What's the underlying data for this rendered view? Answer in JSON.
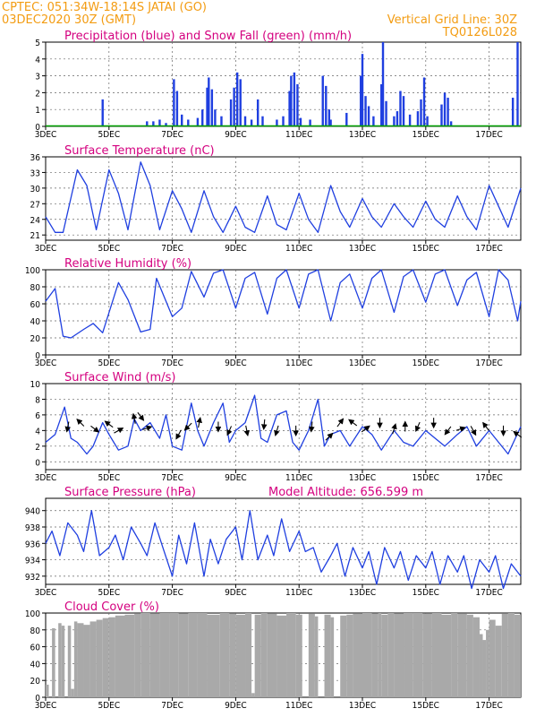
{
  "header": {
    "line1_left": "CPTEC:   051:34W-18:14S   JATAI (GO)",
    "line2_left": "03DEC2020  30Z  (GMT)",
    "line1_right": "Vertical Grid Line: 30Z",
    "line2_right": "TQ0126L028"
  },
  "colors": {
    "header": "#f39c12",
    "panel_title": "#d4007f",
    "series_line": "#1f3fe0",
    "precip_bars": "#1f3fe0",
    "snow_line": "#00a000",
    "cloud_fill": "#a9a9a9",
    "wind_arrows": "#000000"
  },
  "chart_data": [
    {
      "id": "precip",
      "type": "bar",
      "title": "Precipitation (blue) and Snow Fall (green) (mm/h)",
      "ylim": [
        0,
        5
      ],
      "yticks": [
        0,
        1,
        2,
        3,
        4,
        5
      ],
      "x_tick_labels": [
        "3DEC",
        "5DEC",
        "7DEC",
        "9DEC",
        "11DEC",
        "13DEC",
        "15DEC",
        "17DEC"
      ],
      "grid": "dashed",
      "series": [
        {
          "values": [
            [
              4.8,
              1.6
            ],
            [
              6.2,
              0.3
            ],
            [
              6.4,
              0.3
            ],
            [
              6.6,
              0.4
            ],
            [
              6.8,
              0.2
            ],
            [
              7.05,
              2.8
            ],
            [
              7.15,
              2.1
            ],
            [
              7.3,
              0.7
            ],
            [
              7.5,
              0.4
            ],
            [
              7.8,
              0.5
            ],
            [
              7.95,
              1.0
            ],
            [
              8.1,
              2.3
            ],
            [
              8.15,
              2.9
            ],
            [
              8.25,
              2.2
            ],
            [
              8.35,
              1.0
            ],
            [
              8.55,
              0.6
            ],
            [
              8.85,
              1.6
            ],
            [
              8.95,
              2.3
            ],
            [
              9.05,
              3.2
            ],
            [
              9.15,
              2.8
            ],
            [
              9.3,
              0.6
            ],
            [
              9.5,
              0.4
            ],
            [
              9.7,
              1.6
            ],
            [
              9.85,
              0.6
            ],
            [
              10.3,
              0.4
            ],
            [
              10.5,
              0.6
            ],
            [
              10.7,
              2.1
            ],
            [
              10.75,
              3.0
            ],
            [
              10.85,
              3.2
            ],
            [
              10.95,
              2.5
            ],
            [
              11.05,
              0.5
            ],
            [
              11.35,
              0.4
            ],
            [
              11.75,
              3.0
            ],
            [
              11.85,
              2.4
            ],
            [
              11.95,
              1.0
            ],
            [
              12.0,
              0.4
            ],
            [
              12.5,
              0.8
            ],
            [
              12.95,
              3.0
            ],
            [
              13.0,
              4.3
            ],
            [
              13.1,
              1.8
            ],
            [
              13.2,
              1.2
            ],
            [
              13.35,
              0.6
            ],
            [
              13.6,
              2.5
            ],
            [
              13.65,
              5.0
            ],
            [
              13.75,
              1.5
            ],
            [
              14.0,
              0.6
            ],
            [
              14.1,
              0.9
            ],
            [
              14.2,
              2.1
            ],
            [
              14.3,
              1.8
            ],
            [
              14.5,
              0.7
            ],
            [
              14.75,
              0.9
            ],
            [
              14.85,
              1.6
            ],
            [
              14.95,
              2.9
            ],
            [
              15.05,
              0.6
            ],
            [
              15.5,
              1.3
            ],
            [
              15.6,
              2.0
            ],
            [
              15.7,
              1.7
            ],
            [
              15.8,
              0.3
            ],
            [
              17.75,
              1.7
            ],
            [
              17.9,
              5.0
            ]
          ]
        }
      ]
    },
    {
      "id": "temperature",
      "type": "line",
      "title": "Surface Temperature (nC)",
      "ylim": [
        20,
        36
      ],
      "yticks": [
        21,
        24,
        27,
        30,
        33,
        36
      ],
      "x_tick_labels": [
        "3DEC",
        "5DEC",
        "7DEC",
        "9DEC",
        "11DEC",
        "13DEC",
        "15DEC",
        "17DEC"
      ],
      "series": [
        {
          "x": [
            3.0,
            3.3,
            3.55,
            4.0,
            4.3,
            4.6,
            5.0,
            5.3,
            5.6,
            6.0,
            6.3,
            6.6,
            7.0,
            7.3,
            7.6,
            8.0,
            8.3,
            8.6,
            9.0,
            9.3,
            9.6,
            10.0,
            10.3,
            10.6,
            11.0,
            11.3,
            11.6,
            12.0,
            12.3,
            12.6,
            13.0,
            13.3,
            13.6,
            14.0,
            14.3,
            14.6,
            15.0,
            15.3,
            15.6,
            16.0,
            16.3,
            16.6,
            17.0,
            17.3,
            17.6,
            18.0
          ],
          "y": [
            24.5,
            21.5,
            21.5,
            33.5,
            30.5,
            22.0,
            33.5,
            29.0,
            22.0,
            35.0,
            30.5,
            22.0,
            29.5,
            26.0,
            21.5,
            29.5,
            24.5,
            21.5,
            26.5,
            22.5,
            21.5,
            28.5,
            23.0,
            22.0,
            29.0,
            24.0,
            21.5,
            30.5,
            25.5,
            22.5,
            28.0,
            24.5,
            22.5,
            27.0,
            24.5,
            22.5,
            27.5,
            24.0,
            22.5,
            28.5,
            24.5,
            22.0,
            30.5,
            26.5,
            22.5,
            30.0
          ]
        }
      ]
    },
    {
      "id": "humidity",
      "type": "line",
      "title": "Relative Humidity (%)",
      "ylim": [
        0,
        100
      ],
      "yticks": [
        0,
        20,
        40,
        60,
        80,
        100
      ],
      "x_tick_labels": [
        "3DEC",
        "5DEC",
        "7DEC",
        "9DEC",
        "11DEC",
        "13DEC",
        "15DEC",
        "17DEC"
      ],
      "series": [
        {
          "x": [
            3.0,
            3.3,
            3.55,
            3.8,
            4.2,
            4.5,
            4.8,
            5.3,
            5.6,
            6.0,
            6.3,
            6.5,
            7.0,
            7.3,
            7.6,
            8.0,
            8.3,
            8.6,
            9.0,
            9.3,
            9.6,
            10.0,
            10.3,
            10.6,
            11.0,
            11.3,
            11.6,
            12.0,
            12.3,
            12.6,
            13.0,
            13.3,
            13.6,
            14.0,
            14.3,
            14.6,
            15.0,
            15.3,
            15.6,
            16.0,
            16.3,
            16.6,
            17.0,
            17.3,
            17.6,
            17.9,
            18.0
          ],
          "y": [
            63,
            78,
            22,
            20,
            30,
            37,
            26,
            85,
            65,
            27,
            30,
            90,
            45,
            55,
            98,
            68,
            96,
            100,
            55,
            90,
            97,
            48,
            90,
            100,
            55,
            95,
            100,
            40,
            85,
            95,
            55,
            90,
            100,
            50,
            92,
            100,
            62,
            95,
            100,
            58,
            88,
            97,
            45,
            100,
            88,
            40,
            63
          ]
        }
      ]
    },
    {
      "id": "wind",
      "type": "line",
      "title": "Surface Wind (m/s)",
      "ylim": [
        -1,
        10
      ],
      "yticks": [
        0,
        2,
        4,
        6,
        8,
        10
      ],
      "x_tick_labels": [
        "3DEC",
        "5DEC",
        "7DEC",
        "9DEC",
        "11DEC",
        "13DEC",
        "15DEC",
        "17DEC"
      ],
      "series": [
        {
          "x": [
            3.0,
            3.3,
            3.6,
            3.8,
            4.0,
            4.3,
            4.5,
            4.8,
            5.0,
            5.3,
            5.6,
            5.8,
            6.0,
            6.3,
            6.6,
            6.8,
            7.0,
            7.3,
            7.6,
            7.8,
            8.0,
            8.3,
            8.6,
            8.8,
            9.0,
            9.3,
            9.6,
            9.8,
            10.0,
            10.3,
            10.6,
            10.8,
            11.0,
            11.3,
            11.6,
            11.8,
            12.0,
            12.3,
            12.6,
            13.0,
            13.3,
            13.6,
            14.0,
            14.3,
            14.6,
            15.0,
            15.3,
            15.6,
            16.0,
            16.3,
            16.6,
            17.0,
            17.3,
            17.6,
            18.0
          ],
          "y": [
            2.5,
            3.5,
            7.0,
            3.0,
            2.5,
            1.0,
            2.0,
            5.0,
            3.5,
            1.5,
            2.0,
            5.5,
            4.0,
            5.0,
            3.0,
            6.0,
            2.0,
            1.5,
            7.5,
            4.0,
            2.0,
            5.0,
            7.5,
            2.5,
            4.0,
            5.0,
            8.5,
            3.0,
            2.5,
            6.0,
            6.5,
            2.5,
            1.5,
            4.0,
            8.0,
            2.0,
            3.5,
            4.0,
            2.0,
            4.5,
            3.5,
            1.5,
            4.0,
            2.5,
            2.0,
            4.0,
            3.0,
            2.0,
            3.5,
            4.5,
            2.0,
            4.0,
            2.5,
            1.0,
            4.5
          ]
        }
      ]
    },
    {
      "id": "pressure",
      "type": "line",
      "title": "Surface Pressure (hPa)",
      "annotation": "Model Altitude: 656.599  m",
      "ylim": [
        931,
        941.5
      ],
      "yticks": [
        932,
        934,
        936,
        938,
        940
      ],
      "x_tick_labels": [
        "3DEC",
        "5DEC",
        "7DEC",
        "9DEC",
        "11DEC",
        "13DEC",
        "15DEC",
        "17DEC"
      ],
      "series": [
        {
          "x": [
            3.0,
            3.2,
            3.45,
            3.7,
            4.0,
            4.2,
            4.45,
            4.7,
            5.0,
            5.2,
            5.45,
            5.7,
            6.0,
            6.2,
            6.45,
            6.7,
            7.0,
            7.2,
            7.45,
            7.7,
            8.0,
            8.2,
            8.45,
            8.7,
            9.0,
            9.2,
            9.45,
            9.7,
            10.0,
            10.2,
            10.45,
            10.7,
            11.0,
            11.2,
            11.45,
            11.7,
            12.0,
            12.2,
            12.45,
            12.7,
            13.0,
            13.2,
            13.45,
            13.7,
            14.0,
            14.2,
            14.45,
            14.7,
            15.0,
            15.2,
            15.45,
            15.7,
            16.0,
            16.2,
            16.45,
            16.7,
            17.0,
            17.2,
            17.45,
            17.7,
            18.0
          ],
          "y": [
            936.0,
            937.5,
            934.5,
            938.5,
            937.0,
            935.0,
            940.0,
            934.5,
            935.5,
            937.0,
            934.0,
            938.0,
            936.0,
            934.5,
            938.5,
            935.5,
            932.0,
            937.0,
            933.5,
            938.5,
            932.0,
            936.5,
            933.5,
            936.5,
            938.0,
            934.0,
            940.0,
            934.0,
            937.0,
            934.5,
            939.0,
            935.0,
            937.5,
            935.0,
            935.5,
            932.5,
            934.5,
            936.0,
            932.0,
            935.5,
            933.0,
            935.0,
            931.0,
            935.5,
            933.0,
            935.0,
            931.5,
            934.5,
            933.0,
            935.0,
            931.0,
            934.5,
            932.5,
            934.5,
            930.5,
            934.0,
            932.5,
            934.5,
            930.5,
            933.5,
            932.0
          ]
        }
      ]
    },
    {
      "id": "cloud",
      "type": "area",
      "title": "Cloud Cover (%)",
      "ylim": [
        0,
        100
      ],
      "yticks": [
        0,
        20,
        40,
        60,
        80,
        100
      ],
      "x_tick_labels": [
        "3DEC",
        "5DEC",
        "7DEC",
        "9DEC",
        "11DEC",
        "13DEC",
        "15DEC",
        "17DEC"
      ],
      "series": [
        {
          "x": [
            3.0,
            3.1,
            3.2,
            3.3,
            3.4,
            3.5,
            3.6,
            3.7,
            3.8,
            3.9,
            4.0,
            4.2,
            4.4,
            4.6,
            4.8,
            5.0,
            5.2,
            5.5,
            5.8,
            6.0,
            6.3,
            6.6,
            6.9,
            7.2,
            7.5,
            7.8,
            8.1,
            8.5,
            8.8,
            9.0,
            9.3,
            9.5,
            9.6,
            9.8,
            10.0,
            10.3,
            10.6,
            10.9,
            11.1,
            11.3,
            11.5,
            11.6,
            11.8,
            12.0,
            12.1,
            12.3,
            12.5,
            12.7,
            13.0,
            13.3,
            13.5,
            13.6,
            13.8,
            14.0,
            14.3,
            14.6,
            14.9,
            15.2,
            15.5,
            15.8,
            16.0,
            16.3,
            16.5,
            16.7,
            16.8,
            16.9,
            17.0,
            17.2,
            17.4,
            17.6,
            17.8,
            18.0
          ],
          "y": [
            15,
            0,
            82,
            0,
            88,
            85,
            0,
            85,
            10,
            90,
            88,
            86,
            90,
            92,
            94,
            95,
            97,
            98,
            99,
            100,
            99,
            100,
            100,
            99,
            100,
            100,
            98,
            100,
            99,
            98,
            100,
            5,
            98,
            100,
            99,
            97,
            100,
            98,
            0,
            99,
            96,
            0,
            98,
            95,
            0,
            97,
            98,
            99,
            100,
            99,
            100,
            98,
            100,
            99,
            100,
            100,
            99,
            100,
            98,
            100,
            99,
            98,
            95,
            75,
            68,
            80,
            92,
            85,
            99,
            100,
            98,
            100
          ]
        }
      ]
    }
  ],
  "wind_arrows": [
    {
      "x": 3.7,
      "y": 4.5,
      "u": -0.2,
      "v": -1.0
    },
    {
      "x": 4.1,
      "y": 5.0,
      "u": -0.7,
      "v": 0.7
    },
    {
      "x": 4.55,
      "y": 4.2,
      "u": 0.8,
      "v": -0.6
    },
    {
      "x": 5.0,
      "y": 4.8,
      "u": -0.8,
      "v": 0.6
    },
    {
      "x": 5.3,
      "y": 4.0,
      "u": 0.9,
      "v": 0.5
    },
    {
      "x": 5.8,
      "y": 5.5,
      "u": -0.2,
      "v": 1.0
    },
    {
      "x": 6.0,
      "y": 5.8,
      "u": 0.6,
      "v": -0.8
    },
    {
      "x": 6.2,
      "y": 4.3,
      "u": 0.9,
      "v": 0.3
    },
    {
      "x": 7.2,
      "y": 3.5,
      "u": -0.5,
      "v": -0.9
    },
    {
      "x": 7.5,
      "y": 4.5,
      "u": -0.7,
      "v": -0.7
    },
    {
      "x": 7.85,
      "y": 5.0,
      "u": 0.2,
      "v": 1.0
    },
    {
      "x": 8.45,
      "y": 4.5,
      "u": 0.0,
      "v": -1.0
    },
    {
      "x": 8.8,
      "y": 4.0,
      "u": -0.4,
      "v": -0.9
    },
    {
      "x": 9.35,
      "y": 4.0,
      "u": 0.2,
      "v": -1.0
    },
    {
      "x": 9.9,
      "y": 4.8,
      "u": -0.1,
      "v": -1.0
    },
    {
      "x": 10.3,
      "y": 4.0,
      "u": -0.3,
      "v": -1.0
    },
    {
      "x": 10.9,
      "y": 4.0,
      "u": 0.0,
      "v": -1.0
    },
    {
      "x": 11.4,
      "y": 4.5,
      "u": -0.1,
      "v": -1.0
    },
    {
      "x": 11.95,
      "y": 3.2,
      "u": 0.7,
      "v": 0.7
    },
    {
      "x": 12.3,
      "y": 5.0,
      "u": 0.6,
      "v": 0.8
    },
    {
      "x": 12.7,
      "y": 5.0,
      "u": -0.8,
      "v": 0.6
    },
    {
      "x": 13.1,
      "y": 4.2,
      "u": 0.8,
      "v": 0.6
    },
    {
      "x": 13.55,
      "y": 5.0,
      "u": 0.0,
      "v": -1.0
    },
    {
      "x": 14.0,
      "y": 4.2,
      "u": 0.3,
      "v": 1.0
    },
    {
      "x": 14.35,
      "y": 4.5,
      "u": 0.0,
      "v": 1.0
    },
    {
      "x": 14.75,
      "y": 4.5,
      "u": -0.4,
      "v": -0.9
    },
    {
      "x": 15.25,
      "y": 5.0,
      "u": 0.0,
      "v": -1.0
    },
    {
      "x": 15.7,
      "y": 4.0,
      "u": -0.6,
      "v": -0.8
    },
    {
      "x": 16.1,
      "y": 4.2,
      "u": 0.9,
      "v": 0.3
    },
    {
      "x": 16.5,
      "y": 4.0,
      "u": 0.5,
      "v": -0.9
    },
    {
      "x": 16.9,
      "y": 4.5,
      "u": -0.6,
      "v": 0.8
    },
    {
      "x": 17.45,
      "y": 4.0,
      "u": 0.0,
      "v": -1.0
    },
    {
      "x": 17.9,
      "y": 3.5,
      "u": -0.8,
      "v": 0.6
    }
  ]
}
